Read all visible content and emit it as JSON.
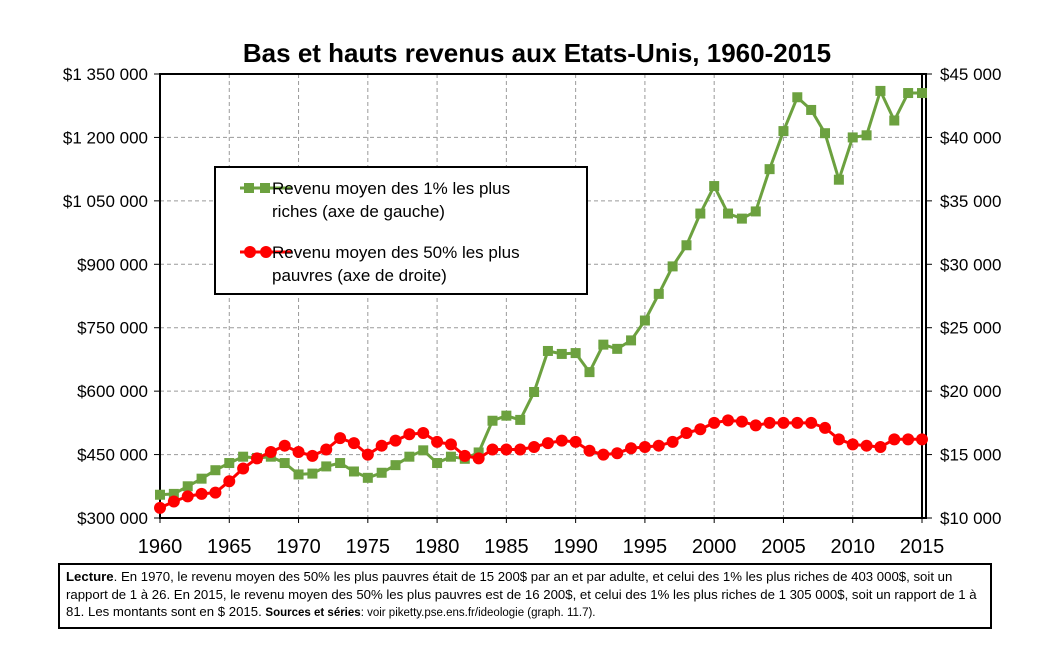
{
  "chart_data": {
    "type": "line",
    "title": "Bas et hauts revenus aux Etats-Unis, 1960-2015",
    "x": [
      1960,
      1961,
      1962,
      1963,
      1964,
      1965,
      1966,
      1967,
      1968,
      1969,
      1970,
      1971,
      1972,
      1973,
      1974,
      1975,
      1976,
      1977,
      1978,
      1979,
      1980,
      1981,
      1982,
      1983,
      1984,
      1985,
      1986,
      1987,
      1988,
      1989,
      1990,
      1991,
      1992,
      1993,
      1994,
      1995,
      1996,
      1997,
      1998,
      1999,
      2000,
      2001,
      2002,
      2003,
      2004,
      2005,
      2006,
      2007,
      2008,
      2009,
      2010,
      2011,
      2012,
      2013,
      2014,
      2015
    ],
    "xlim": [
      1960,
      2015
    ],
    "x_ticks": [
      "1960",
      "1965",
      "1970",
      "1975",
      "1980",
      "1985",
      "1990",
      "1995",
      "2000",
      "2005",
      "2010",
      "2015"
    ],
    "y_left": {
      "lim": [
        300000,
        1350000
      ],
      "ticks": [
        "$300 000",
        "$450 000",
        "$600 000",
        "$750 000",
        "$900 000",
        "$1 050 000",
        "$1 200 000",
        "$1 350 000"
      ]
    },
    "y_right": {
      "lim": [
        10000,
        45000
      ],
      "ticks": [
        "$10 000",
        "$15 000",
        "$20 000",
        "$25 000",
        "$30 000",
        "$35 000",
        "$40 000",
        "$45 000"
      ]
    },
    "grid": true,
    "legend_position": "upper-left",
    "series": [
      {
        "name": "Revenu moyen des 1% les plus riches (axe de gauche)",
        "axis": "left",
        "color": "#6ca13f",
        "marker": "square",
        "values": [
          355000,
          357000,
          375000,
          393000,
          413000,
          430000,
          445000,
          442000,
          445000,
          430000,
          403000,
          405000,
          422000,
          430000,
          410000,
          395000,
          407000,
          425000,
          445000,
          460000,
          430000,
          445000,
          440000,
          455000,
          530000,
          542000,
          532000,
          598000,
          695000,
          688000,
          690000,
          645000,
          710000,
          700000,
          720000,
          767000,
          830000,
          895000,
          945000,
          1020000,
          1085000,
          1020000,
          1008000,
          1025000,
          1125000,
          1215000,
          1295000,
          1265000,
          1210000,
          1100000,
          1200000,
          1205000,
          1310000,
          1240000,
          1305000,
          1305000
        ]
      },
      {
        "name": "Revenu moyen des 50% les plus pauvres (axe de droite)",
        "axis": "right",
        "color": "#ff0000",
        "marker": "circle",
        "values": [
          10800,
          11300,
          11700,
          11900,
          12000,
          12900,
          13900,
          14700,
          15200,
          15700,
          15200,
          14900,
          15400,
          16300,
          15900,
          15000,
          15700,
          16100,
          16600,
          16700,
          16000,
          15800,
          14900,
          14700,
          15400,
          15400,
          15400,
          15600,
          15900,
          16100,
          16000,
          15300,
          15000,
          15100,
          15500,
          15600,
          15700,
          16000,
          16700,
          17000,
          17500,
          17700,
          17600,
          17300,
          17500,
          17500,
          17500,
          17500,
          17100,
          16200,
          15800,
          15700,
          15600,
          16200,
          16200,
          16200
        ]
      }
    ]
  },
  "note": {
    "lead": "Lecture",
    "body": ". En 1970, le revenu moyen des 50% les plus pauvres était de 15 200$ par an et par adulte, et celui des 1% les plus riches de 403 000$, soit un rapport de 1 à 26. En 2015, le revenu moyen des 50% les plus pauvres est de 16 200$, et celui des 1% les plus riches de 1 305 000$, soit un rapport de 1 à 81. Les montants sont en $ 2015. ",
    "sources_label": "Sources et séries",
    "sources_text": ": voir piketty.pse.ens.fr/ideologie (graph. 11.7)."
  }
}
